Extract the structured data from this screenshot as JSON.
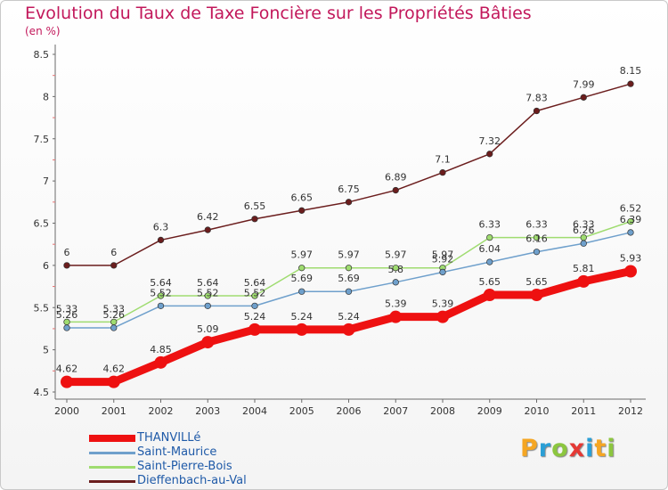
{
  "title": "Evolution du Taux de Taxe Foncière sur les Propriétés Bâties",
  "subtitle": "(en %)",
  "logo": {
    "letters": [
      "P",
      "r",
      "o",
      "x",
      "i",
      "t",
      "i"
    ],
    "colors": [
      "#f5a623",
      "#2a9fd6",
      "#8cc63f",
      "#e53935",
      "#2a9fd6",
      "#f5a623",
      "#8cc63f"
    ]
  },
  "chart_data": {
    "type": "line",
    "title": "Evolution du Taux de Taxe Foncière sur les Propriétés Bâties",
    "ylabel": "(en %)",
    "xlabel": "",
    "ylim": [
      4.5,
      8.5
    ],
    "yticks": [
      "4.5",
      "5",
      "5.5",
      "6",
      "6.5",
      "7",
      "7.5",
      "8",
      "8.5"
    ],
    "grid": false,
    "legend": "bottom-left",
    "categories": [
      "2000",
      "2001",
      "2002",
      "2003",
      "2004",
      "2005",
      "2006",
      "2007",
      "2008",
      "2009",
      "2010",
      "2011",
      "2012"
    ],
    "series": [
      {
        "name": "Dieffenbach-au-Val",
        "color": "#6b1d1d",
        "values": [
          6,
          6,
          6.3,
          6.42,
          6.55,
          6.65,
          6.75,
          6.89,
          7.1,
          7.32,
          7.83,
          7.99,
          8.15
        ],
        "labels": [
          "6",
          "6",
          "6.3",
          "6.42",
          "6.55",
          "6.65",
          "6.75",
          "6.89",
          "7.1",
          "7.32",
          "7.83",
          "7.99",
          "8.15"
        ]
      },
      {
        "name": "Saint-Pierre-Bois",
        "color": "#9fdc70",
        "values": [
          5.33,
          5.33,
          5.64,
          5.64,
          5.64,
          5.97,
          5.97,
          5.97,
          5.97,
          6.33,
          6.33,
          6.33,
          6.52
        ],
        "labels": [
          "5.33",
          "5.33",
          "5.64",
          "5.64",
          "5.64",
          "5.97",
          "5.97",
          "5.97",
          "5.97",
          "6.33",
          "6.33",
          "6.33",
          "6.52"
        ]
      },
      {
        "name": "Saint-Maurice",
        "color": "#6fa0cc",
        "values": [
          5.26,
          5.26,
          5.52,
          5.52,
          5.52,
          5.69,
          5.69,
          5.8,
          5.92,
          6.04,
          6.16,
          6.26,
          6.39
        ],
        "labels": [
          "5.26",
          "5.26",
          "5.52",
          "5.52",
          "5.52",
          "5.69",
          "5.69",
          "5.8",
          "5.92",
          "6.04",
          "6.16",
          "6.26",
          "6.39"
        ]
      },
      {
        "name": "THANVILLé",
        "color": "#ee1111",
        "values": [
          4.62,
          4.62,
          4.85,
          5.09,
          5.24,
          5.24,
          5.24,
          5.39,
          5.39,
          5.65,
          5.65,
          5.81,
          5.93
        ],
        "labels": [
          "4.62",
          "4.62",
          "4.85",
          "5.09",
          "5.24",
          "5.24",
          "5.24",
          "5.39",
          "5.39",
          "5.65",
          "5.65",
          "5.81",
          "5.93"
        ]
      }
    ]
  },
  "legend": [
    {
      "label": "THANVILLé",
      "color": "#ee1111",
      "thick": true
    },
    {
      "label": "Saint-Maurice",
      "color": "#6fa0cc",
      "thick": false
    },
    {
      "label": "Saint-Pierre-Bois",
      "color": "#9fdc70",
      "thick": false
    },
    {
      "label": "Dieffenbach-au-Val",
      "color": "#6b1d1d",
      "thick": false
    }
  ]
}
